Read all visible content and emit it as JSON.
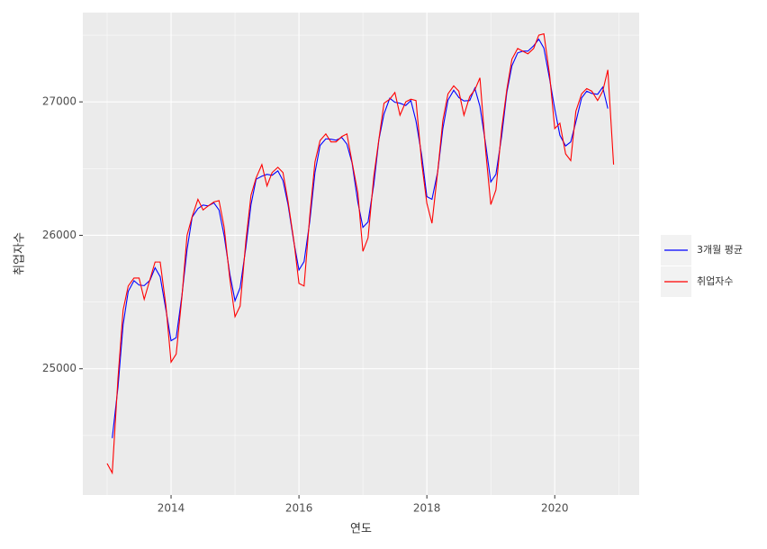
{
  "chart_data": {
    "type": "line",
    "x_label": "연도",
    "y_label": "취업자수",
    "x": [
      2013.0,
      2013.08,
      2013.17,
      2013.25,
      2013.33,
      2013.42,
      2013.5,
      2013.58,
      2013.67,
      2013.75,
      2013.83,
      2013.92,
      2014.0,
      2014.08,
      2014.17,
      2014.25,
      2014.33,
      2014.42,
      2014.5,
      2014.58,
      2014.67,
      2014.75,
      2014.83,
      2014.92,
      2015.0,
      2015.08,
      2015.17,
      2015.25,
      2015.33,
      2015.42,
      2015.5,
      2015.58,
      2015.67,
      2015.75,
      2015.83,
      2015.92,
      2016.0,
      2016.08,
      2016.17,
      2016.25,
      2016.33,
      2016.42,
      2016.5,
      2016.58,
      2016.67,
      2016.75,
      2016.83,
      2016.92,
      2017.0,
      2017.08,
      2017.17,
      2017.25,
      2017.33,
      2017.42,
      2017.5,
      2017.58,
      2017.67,
      2017.75,
      2017.83,
      2017.92,
      2018.0,
      2018.08,
      2018.17,
      2018.25,
      2018.33,
      2018.42,
      2018.5,
      2018.58,
      2018.67,
      2018.75,
      2018.83,
      2018.92,
      2019.0,
      2019.08,
      2019.17,
      2019.25,
      2019.33,
      2019.42,
      2019.5,
      2019.58,
      2019.67,
      2019.75,
      2019.83,
      2019.92,
      2020.0,
      2020.08,
      2020.17,
      2020.25,
      2020.33,
      2020.42,
      2020.5,
      2020.58,
      2020.67,
      2020.75,
      2020.83,
      2020.92
    ],
    "series": [
      {
        "name": "3개월 평균",
        "color": "#0000ff",
        "values": [
          null,
          24480,
          24863,
          25330,
          25580,
          25660,
          25627,
          25623,
          25663,
          25757,
          25690,
          25440,
          25210,
          25233,
          25550,
          25893,
          26137,
          26200,
          26227,
          26220,
          26243,
          26190,
          25997,
          25707,
          25510,
          25607,
          25910,
          26230,
          26420,
          26443,
          26457,
          26450,
          26483,
          26410,
          26227,
          25950,
          25740,
          25803,
          26107,
          26470,
          26673,
          26723,
          26720,
          26713,
          26733,
          26683,
          26543,
          26250,
          26060,
          26100,
          26380,
          26717,
          26910,
          27027,
          26997,
          26990,
          26973,
          27010,
          26857,
          26597,
          26290,
          26270,
          26477,
          26800,
          27013,
          27087,
          27033,
          27007,
          27010,
          27103,
          26967,
          26680,
          26400,
          26457,
          26743,
          27070,
          27270,
          27367,
          27380,
          27380,
          27420,
          27470,
          27403,
          27170,
          26947,
          26750,
          26670,
          26700,
          26850,
          27030,
          27080,
          27063,
          27057,
          27110,
          26950,
          null
        ]
      },
      {
        "name": "취업자수",
        "color": "#ff0000",
        "values": [
          24290,
          24220,
          24930,
          25440,
          25620,
          25680,
          25680,
          25520,
          25670,
          25800,
          25800,
          25470,
          25050,
          25110,
          25540,
          26000,
          26140,
          26270,
          26190,
          26220,
          26250,
          26260,
          26060,
          25670,
          25390,
          25470,
          25960,
          26300,
          26430,
          26530,
          26370,
          26470,
          26510,
          26470,
          26250,
          25960,
          25640,
          25620,
          26150,
          26550,
          26710,
          26760,
          26700,
          26700,
          26740,
          26760,
          26550,
          26320,
          25880,
          25980,
          26440,
          26720,
          26990,
          27020,
          27070,
          26900,
          27000,
          27020,
          27010,
          26540,
          26240,
          26090,
          26480,
          26860,
          27060,
          27120,
          27080,
          26900,
          27040,
          27090,
          27180,
          26630,
          26230,
          26340,
          26800,
          27090,
          27320,
          27400,
          27380,
          27360,
          27400,
          27500,
          27510,
          27200,
          26800,
          26840,
          26610,
          26560,
          26930,
          27060,
          27100,
          27080,
          27010,
          27080,
          27240,
          26530
        ]
      }
    ],
    "xlim": [
      2012.62,
      2021.32
    ],
    "xticks": [
      2014,
      2016,
      2018,
      2020
    ],
    "ylim": [
      24054,
      27669
    ],
    "yticks": [
      25000,
      26000,
      27000
    ],
    "grid": true,
    "legend": "right"
  }
}
